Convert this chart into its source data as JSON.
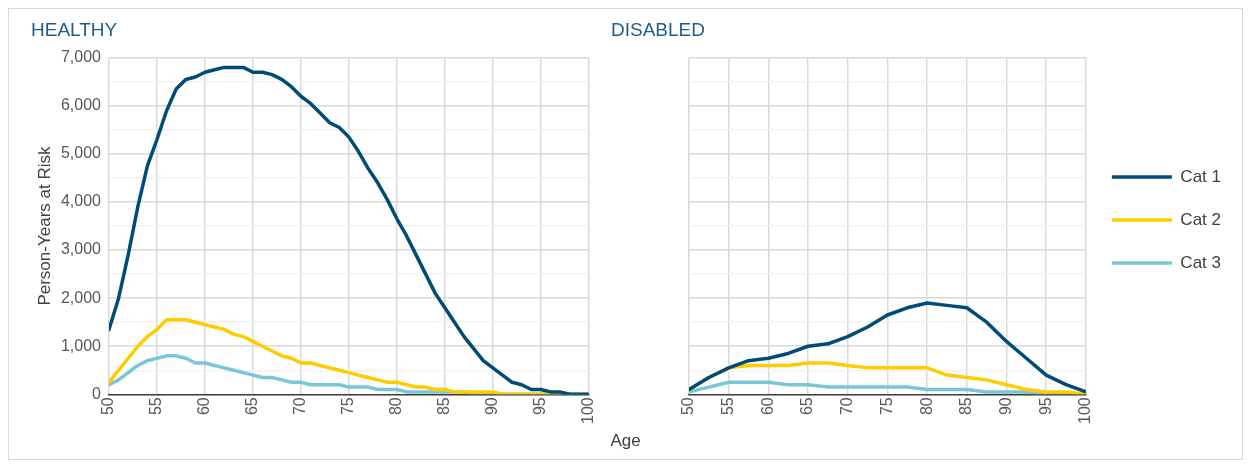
{
  "chart_data": [
    {
      "type": "line",
      "title": "HEALTHY",
      "xlabel": "Age",
      "ylabel": "Person-Years at Risk",
      "x": [
        50,
        51,
        52,
        53,
        54,
        55,
        56,
        57,
        58,
        59,
        60,
        61,
        62,
        63,
        64,
        65,
        66,
        67,
        68,
        69,
        70,
        71,
        72,
        73,
        74,
        75,
        76,
        77,
        78,
        79,
        80,
        81,
        82,
        83,
        84,
        85,
        86,
        87,
        88,
        89,
        90,
        91,
        92,
        93,
        94,
        95,
        96,
        97,
        98,
        99,
        100
      ],
      "series": [
        {
          "color": "#004c76",
          "values": [
            1350,
            2000,
            2900,
            3900,
            4750,
            5300,
            5900,
            6350,
            6550,
            6600,
            6700,
            6750,
            6800,
            6800,
            6800,
            6700,
            6700,
            6650,
            6550,
            6400,
            6200,
            6050,
            5850,
            5650,
            5550,
            5350,
            5050,
            4700,
            4400,
            4050,
            3650,
            3300,
            2900,
            2500,
            2100,
            1800,
            1500,
            1200,
            950,
            700,
            550,
            400,
            250,
            200,
            100,
            100,
            50,
            50,
            0,
            0,
            0
          ]
        },
        {
          "color": "#ffcc00",
          "values": [
            250,
            500,
            750,
            1000,
            1200,
            1350,
            1550,
            1550,
            1550,
            1500,
            1450,
            1400,
            1350,
            1250,
            1200,
            1100,
            1000,
            900,
            800,
            750,
            650,
            650,
            600,
            550,
            500,
            450,
            400,
            350,
            300,
            250,
            250,
            200,
            150,
            150,
            100,
            100,
            50,
            50,
            50,
            50,
            50,
            0,
            0,
            0,
            0,
            0,
            0,
            0,
            null,
            null,
            null
          ]
        },
        {
          "color": "#79c6d6",
          "values": [
            200,
            300,
            450,
            600,
            700,
            750,
            800,
            800,
            750,
            650,
            650,
            600,
            550,
            500,
            450,
            400,
            350,
            350,
            300,
            250,
            250,
            200,
            200,
            200,
            200,
            150,
            150,
            150,
            100,
            100,
            100,
            50,
            50,
            50,
            50,
            50,
            50,
            50,
            0,
            0,
            0,
            0,
            0,
            0,
            0,
            0,
            0,
            0,
            0,
            0,
            0
          ]
        }
      ],
      "xlim": [
        50,
        100
      ],
      "xticks": [
        50,
        55,
        60,
        65,
        70,
        75,
        80,
        85,
        90,
        95,
        100
      ],
      "ylim": [
        0,
        7000
      ],
      "yticks": [
        {
          "value": 0,
          "label": "0"
        },
        {
          "value": 500,
          "label": null
        },
        {
          "value": 1000,
          "label": "1,000"
        },
        {
          "value": 1500,
          "label": null
        },
        {
          "value": 2000,
          "label": "2,000"
        },
        {
          "value": 2500,
          "label": null
        },
        {
          "value": 3000,
          "label": "3,000"
        },
        {
          "value": 3500,
          "label": null
        },
        {
          "value": 4000,
          "label": "4,000"
        },
        {
          "value": 4500,
          "label": null
        },
        {
          "value": 5000,
          "label": "5,000"
        },
        {
          "value": 5500,
          "label": null
        },
        {
          "value": 6000,
          "label": "6,000"
        },
        {
          "value": 6500,
          "label": null
        },
        {
          "value": 7000,
          "label": "7,000"
        }
      ],
      "grid": true,
      "legend": false
    },
    {
      "type": "line",
      "title": "DISABLED",
      "x": [
        50,
        52.5,
        55,
        57.5,
        60,
        62.5,
        65,
        67.5,
        70,
        72.5,
        75,
        77.5,
        80,
        82.5,
        85,
        87.5,
        90,
        92.5,
        95,
        97.5,
        100
      ],
      "series": [
        {
          "name": "Cat 1",
          "color": "#004c76",
          "values": [
            100,
            350,
            550,
            700,
            750,
            850,
            1000,
            1050,
            1200,
            1400,
            1650,
            1800,
            1900,
            1850,
            1800,
            1500,
            1100,
            750,
            400,
            200,
            50
          ]
        },
        {
          "name": "Cat 2",
          "color": "#ffcc00",
          "values": [
            100,
            350,
            550,
            600,
            600,
            600,
            650,
            650,
            600,
            550,
            550,
            550,
            550,
            400,
            350,
            300,
            200,
            100,
            50,
            50,
            0
          ]
        },
        {
          "name": "Cat 3",
          "color": "#79c6d6",
          "values": [
            50,
            150,
            250,
            250,
            250,
            200,
            200,
            150,
            150,
            150,
            150,
            150,
            100,
            100,
            100,
            50,
            50,
            50,
            0,
            0,
            0
          ]
        }
      ],
      "xlim": [
        50,
        100
      ],
      "xticks": [
        50,
        55,
        60,
        65,
        70,
        75,
        80,
        85,
        90,
        95,
        100
      ],
      "ylim": [
        0,
        7000
      ],
      "yticks": [
        0,
        {
          "value": 500,
          "label": null
        },
        1000,
        {
          "value": 1500,
          "label": null
        },
        2000,
        {
          "value": 2500,
          "label": null
        },
        3000,
        {
          "value": 3500,
          "label": null
        },
        4000,
        {
          "value": 4500,
          "label": null
        },
        5000,
        {
          "value": 5500,
          "label": null
        },
        6000,
        {
          "value": 6500,
          "label": null
        },
        7000
      ],
      "tick_labels": "x",
      "grid": true,
      "legend": "right"
    }
  ]
}
